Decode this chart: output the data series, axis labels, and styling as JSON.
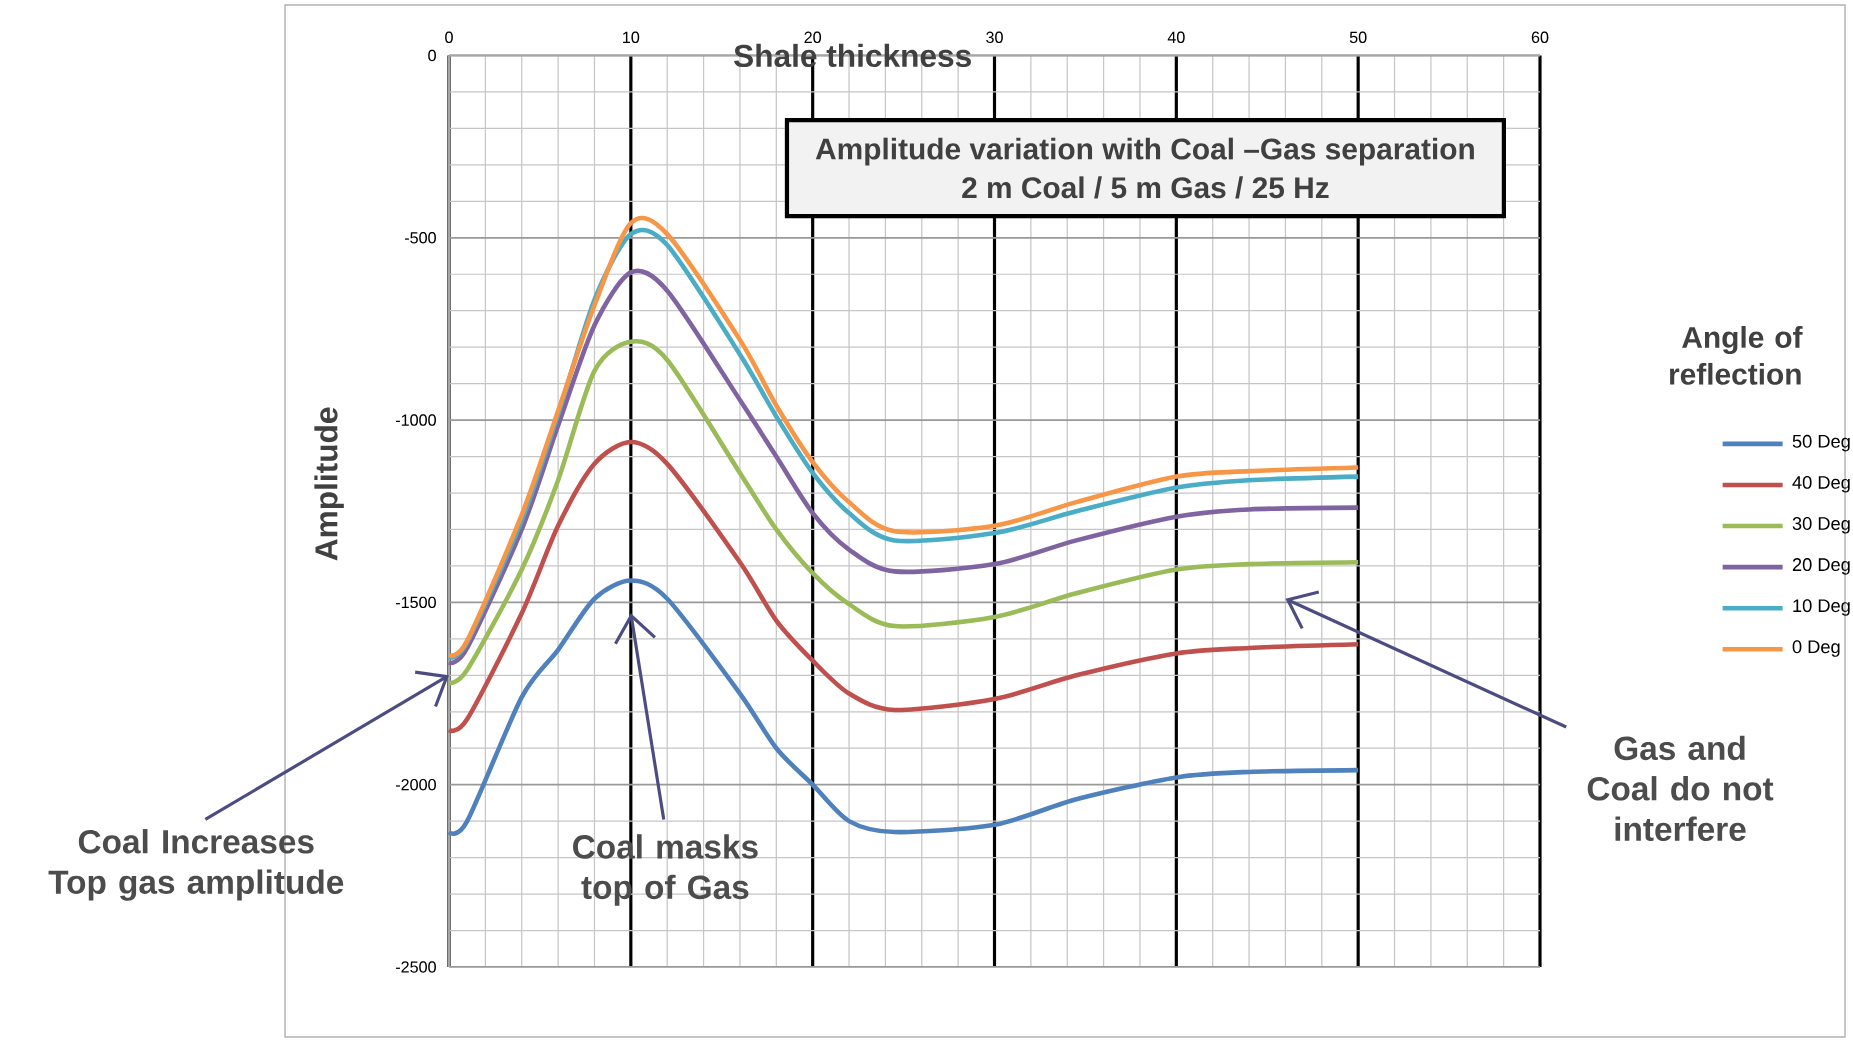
{
  "chart_data": {
    "type": "line",
    "title": "Amplitude variation with Coal –Gas separation",
    "subtitle": "2 m Coal / 5 m Gas / 25 Hz",
    "xlabel": "Shale thickness",
    "ylabel": "Amplitude",
    "legend_title": "Angle of reflection",
    "x": [
      0,
      1,
      4,
      6,
      8,
      10,
      12,
      16,
      18,
      20,
      22,
      24.5,
      30,
      34.5,
      40,
      44,
      50
    ],
    "series": [
      {
        "name": "50 Deg",
        "color": "#4f81bd",
        "values": [
          -2130,
          -2100,
          -1760,
          -1630,
          -1490,
          -1440,
          -1490,
          -1750,
          -1900,
          -2000,
          -2100,
          -2130,
          -2110,
          -2040,
          -1980,
          -1965,
          -1960
        ]
      },
      {
        "name": "40 Deg",
        "color": "#c0504d",
        "values": [
          -1850,
          -1820,
          -1530,
          -1290,
          -1120,
          -1060,
          -1120,
          -1390,
          -1550,
          -1660,
          -1750,
          -1795,
          -1765,
          -1700,
          -1640,
          -1625,
          -1615
        ]
      },
      {
        "name": "30 Deg",
        "color": "#9bbb59",
        "values": [
          -1720,
          -1685,
          -1410,
          -1165,
          -865,
          -785,
          -835,
          -1145,
          -1300,
          -1420,
          -1505,
          -1565,
          -1540,
          -1475,
          -1410,
          -1395,
          -1390
        ]
      },
      {
        "name": "20 Deg",
        "color": "#8064a2",
        "values": [
          -1665,
          -1625,
          -1300,
          -1015,
          -740,
          -595,
          -645,
          -945,
          -1100,
          -1255,
          -1355,
          -1415,
          -1395,
          -1330,
          -1265,
          -1245,
          -1240
        ]
      },
      {
        "name": "10 Deg",
        "color": "#4bacc6",
        "values": [
          -1650,
          -1610,
          -1275,
          -985,
          -670,
          -490,
          -520,
          -820,
          -990,
          -1145,
          -1255,
          -1330,
          -1310,
          -1250,
          -1185,
          -1165,
          -1155
        ]
      },
      {
        "name": "0 Deg",
        "color": "#f79646",
        "values": [
          -1645,
          -1605,
          -1260,
          -975,
          -685,
          -460,
          -490,
          -780,
          -960,
          -1115,
          -1225,
          -1305,
          -1290,
          -1225,
          -1155,
          -1140,
          -1130
        ]
      }
    ],
    "xlim": [
      0,
      60
    ],
    "xticks": [
      0,
      10,
      20,
      30,
      40,
      50,
      60
    ],
    "ylim": [
      -2500,
      0
    ],
    "yticks": [
      -2500,
      -2000,
      -1500,
      -1000,
      -500,
      0
    ],
    "grid": true,
    "legend": "right",
    "marker": "none",
    "line_style": "solid",
    "annotations": [
      "Coal Increases Top gas amplitude",
      "Coal masks top of Gas",
      "Gas and Coal do not interfere"
    ]
  }
}
